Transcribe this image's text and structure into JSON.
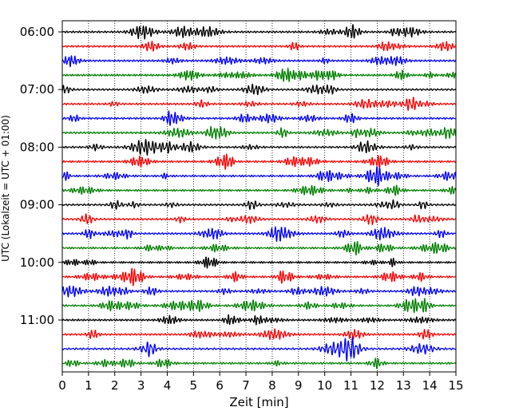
{
  "chart_data": {
    "type": "line",
    "title": "",
    "xlabel": "Zeit  [min]",
    "ylabel": "UTC (Lokalzeit = UTC + 01:00)",
    "xlim": [
      0,
      15
    ],
    "xticks": [
      0,
      1,
      2,
      3,
      4,
      5,
      6,
      7,
      8,
      9,
      10,
      11,
      12,
      13,
      14,
      15
    ],
    "x_gridlines": "dotted vertical at each minute",
    "yticks": [
      "06:00",
      "07:00",
      "08:00",
      "09:00",
      "10:00",
      "11:00"
    ],
    "row_interval_min": 15,
    "rows": 24,
    "trace_colors": [
      "#000000",
      "#ff0000",
      "#0000ff",
      "#008000"
    ],
    "series": [
      {
        "start": "06:00",
        "color": "#000000"
      },
      {
        "start": "06:15",
        "color": "#ff0000"
      },
      {
        "start": "06:30",
        "color": "#0000ff"
      },
      {
        "start": "06:45",
        "color": "#008000"
      },
      {
        "start": "07:00",
        "color": "#000000"
      },
      {
        "start": "07:15",
        "color": "#ff0000"
      },
      {
        "start": "07:30",
        "color": "#0000ff"
      },
      {
        "start": "07:45",
        "color": "#008000"
      },
      {
        "start": "08:00",
        "color": "#000000"
      },
      {
        "start": "08:15",
        "color": "#ff0000"
      },
      {
        "start": "08:30",
        "color": "#0000ff"
      },
      {
        "start": "08:45",
        "color": "#008000"
      },
      {
        "start": "09:00",
        "color": "#000000"
      },
      {
        "start": "09:15",
        "color": "#ff0000"
      },
      {
        "start": "09:30",
        "color": "#0000ff"
      },
      {
        "start": "09:45",
        "color": "#008000"
      },
      {
        "start": "10:00",
        "color": "#000000"
      },
      {
        "start": "10:15",
        "color": "#ff0000"
      },
      {
        "start": "10:30",
        "color": "#0000ff"
      },
      {
        "start": "10:45",
        "color": "#008000"
      },
      {
        "start": "11:00",
        "color": "#000000"
      },
      {
        "start": "11:15",
        "color": "#ff0000"
      },
      {
        "start": "11:30",
        "color": "#0000ff"
      },
      {
        "start": "11:45",
        "color": "#008000"
      }
    ]
  }
}
